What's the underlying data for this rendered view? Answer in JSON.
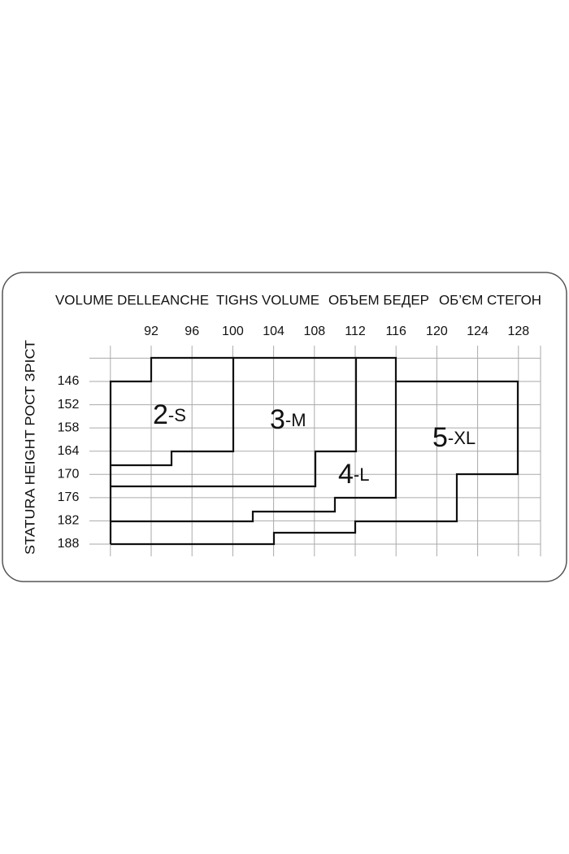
{
  "header": [
    "VOLUME DELLEANCHE",
    "TIGHS VOLUME",
    "ОБЪЕМ БЕДЕР",
    "ОБ’ЄМ СТЕГОН"
  ],
  "side_label": "STATURA  HEIGHT  РОСТ  ЗРІСТ",
  "columns": [
    92,
    96,
    100,
    104,
    108,
    112,
    116,
    120,
    124,
    128
  ],
  "rows": [
    146,
    152,
    158,
    164,
    170,
    176,
    182,
    188
  ],
  "sizes": [
    {
      "number": "2",
      "letter": "-S"
    },
    {
      "number": "3",
      "letter": "-M"
    },
    {
      "number": "4",
      "letter": "-L"
    },
    {
      "number": "5",
      "letter": "-XL"
    }
  ]
}
